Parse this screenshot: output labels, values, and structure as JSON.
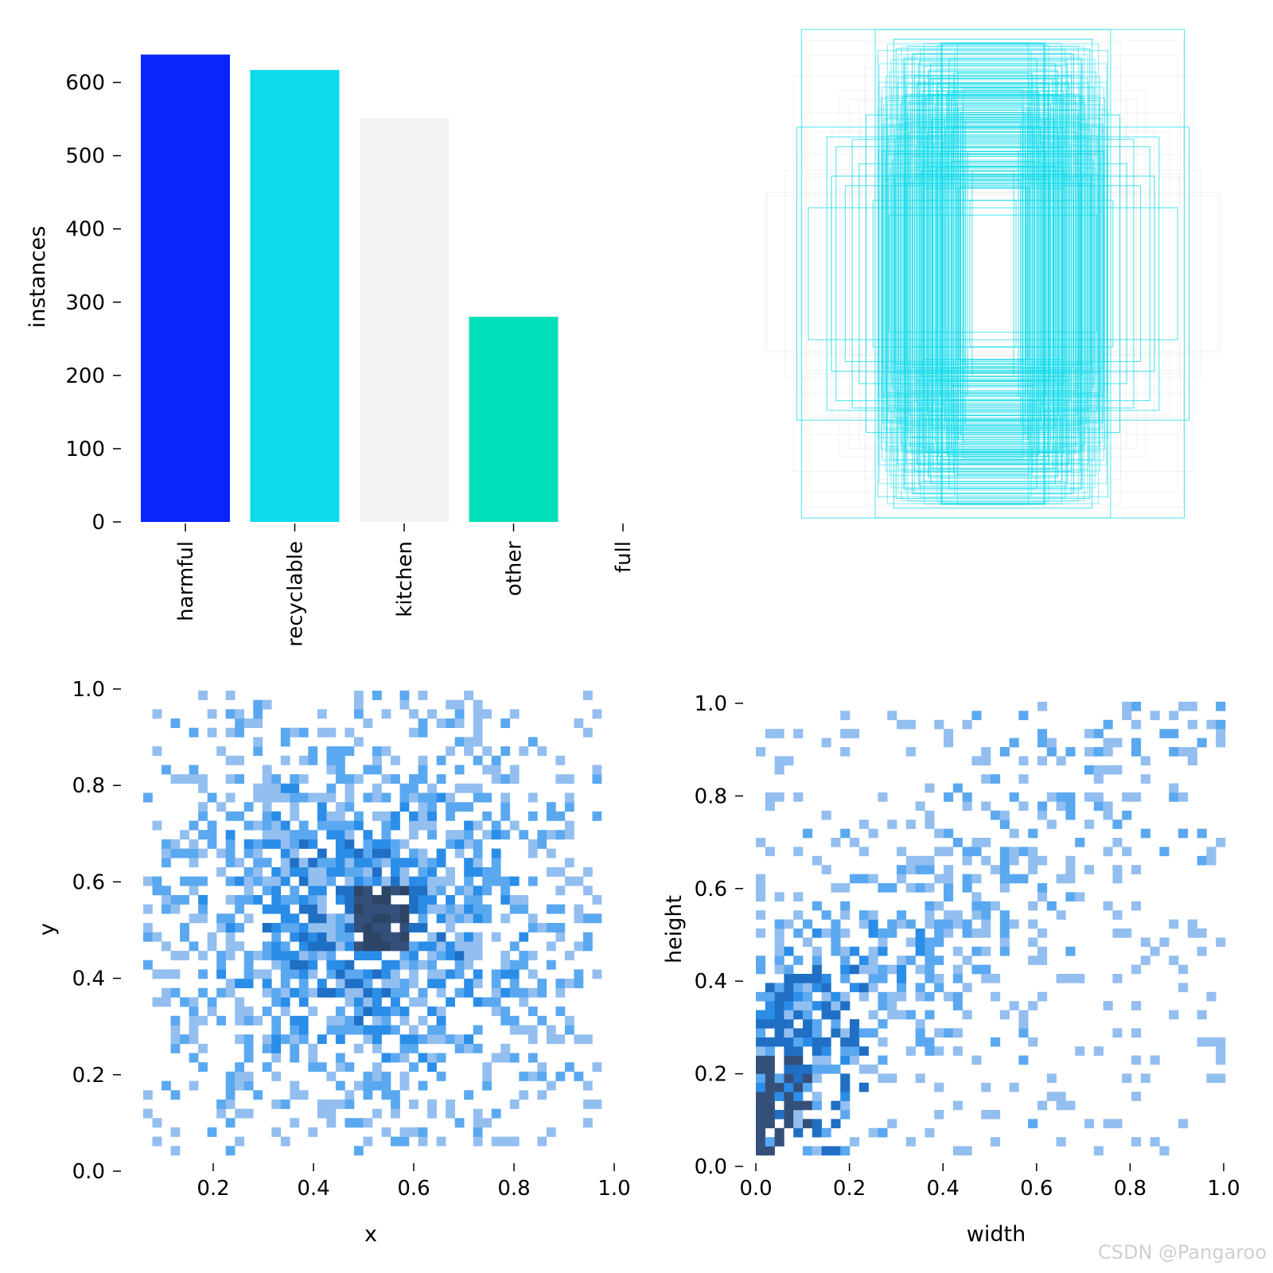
{
  "chart_data": [
    {
      "type": "bar",
      "categories": [
        "harmful",
        "recyclable",
        "kitchen",
        "other",
        "full"
      ],
      "values": [
        638,
        617,
        551,
        280,
        0
      ],
      "colors": [
        "#0b24fb",
        "#0bdbeb",
        "#f3f3f3",
        "#00dfb7",
        "#ffffff"
      ],
      "ylabel": "instances",
      "xlabel": "",
      "ylim": [
        0,
        640
      ],
      "yticks": [
        "0",
        "100",
        "200",
        "300",
        "400",
        "500",
        "600"
      ],
      "grid": false
    },
    {
      "type": "boxes",
      "description_free": true,
      "color": "#0bdbeb",
      "boxes": [
        {
          "w": 0.83,
          "h": 1.0
        },
        {
          "w": 0.51,
          "h": 1.0
        },
        {
          "w": 0.43,
          "h": 0.96
        },
        {
          "w": 0.42,
          "h": 0.92
        },
        {
          "w": 0.35,
          "h": 0.9
        },
        {
          "w": 0.32,
          "h": 0.87
        },
        {
          "w": 0.3,
          "h": 0.85
        },
        {
          "w": 0.28,
          "h": 0.83
        },
        {
          "w": 0.26,
          "h": 0.8
        },
        {
          "w": 0.24,
          "h": 0.78
        },
        {
          "w": 0.22,
          "h": 0.76
        },
        {
          "w": 0.2,
          "h": 0.74
        },
        {
          "w": 0.18,
          "h": 0.72
        },
        {
          "w": 0.16,
          "h": 0.7
        },
        {
          "w": 0.15,
          "h": 0.68
        },
        {
          "w": 0.14,
          "h": 0.66
        },
        {
          "w": 0.13,
          "h": 0.64
        },
        {
          "w": 0.12,
          "h": 0.62
        },
        {
          "w": 0.85,
          "h": 0.6
        },
        {
          "w": 0.72,
          "h": 0.56
        },
        {
          "w": 0.61,
          "h": 0.55
        },
        {
          "w": 0.48,
          "h": 0.5
        },
        {
          "w": 0.58,
          "h": 0.45
        },
        {
          "w": 0.7,
          "h": 0.4
        },
        {
          "w": 0.8,
          "h": 0.27
        },
        {
          "w": 0.45,
          "h": 0.24
        },
        {
          "w": 0.26,
          "h": 0.58
        },
        {
          "w": 0.2,
          "h": 0.52
        },
        {
          "w": 0.18,
          "h": 0.46
        },
        {
          "w": 0.24,
          "h": 0.4
        },
        {
          "w": 0.3,
          "h": 0.35
        },
        {
          "w": 0.35,
          "h": 0.3
        },
        {
          "w": 0.38,
          "h": 0.62
        },
        {
          "w": 0.4,
          "h": 0.7
        },
        {
          "w": 0.33,
          "h": 0.78
        },
        {
          "w": 0.27,
          "h": 0.86
        },
        {
          "w": 0.22,
          "h": 0.94
        },
        {
          "w": 0.19,
          "h": 0.88
        },
        {
          "w": 0.17,
          "h": 0.82
        },
        {
          "w": 0.21,
          "h": 0.64
        },
        {
          "w": 0.25,
          "h": 0.69
        },
        {
          "w": 0.29,
          "h": 0.73
        },
        {
          "w": 0.34,
          "h": 0.81
        },
        {
          "w": 0.37,
          "h": 0.67
        },
        {
          "w": 0.23,
          "h": 0.5
        },
        {
          "w": 0.16,
          "h": 0.44
        },
        {
          "w": 0.12,
          "h": 0.38
        },
        {
          "w": 0.1,
          "h": 0.3
        },
        {
          "w": 0.68,
          "h": 0.52
        },
        {
          "w": 0.55,
          "h": 0.65
        },
        {
          "w": 0.64,
          "h": 0.36
        },
        {
          "w": 0.52,
          "h": 0.3
        },
        {
          "w": 0.41,
          "h": 0.56
        },
        {
          "w": 0.36,
          "h": 0.48
        },
        {
          "w": 0.31,
          "h": 0.42
        },
        {
          "w": 0.28,
          "h": 0.6
        },
        {
          "w": 0.19,
          "h": 0.75
        },
        {
          "w": 0.14,
          "h": 0.58
        },
        {
          "w": 0.11,
          "h": 0.5
        },
        {
          "w": 0.09,
          "h": 0.42
        }
      ]
    },
    {
      "type": "heatmap",
      "xlabel": "x",
      "ylabel": "y",
      "xlim": [
        0.05,
        1.0
      ],
      "ylim": [
        0.0,
        1.0
      ],
      "xticks": [
        "0.2",
        "0.4",
        "0.6",
        "0.8",
        "1.0"
      ],
      "yticks": [
        "0.0",
        "0.2",
        "0.4",
        "0.6",
        "0.8",
        "1.0"
      ],
      "x_mean": 0.5,
      "y_mean": 0.5,
      "x_sd": 0.2,
      "y_sd": 0.17,
      "bins": 50,
      "colors": [
        "#93bef0",
        "#5aa8f0",
        "#2a8de8",
        "#1f6fc4",
        "#34507a",
        "#2d4466"
      ]
    },
    {
      "type": "heatmap",
      "xlabel": "width",
      "ylabel": "height",
      "xlim": [
        0.0,
        1.0
      ],
      "ylim": [
        0.0,
        1.0
      ],
      "xticks": [
        "0.0",
        "0.2",
        "0.4",
        "0.6",
        "0.8",
        "1.0"
      ],
      "yticks": [
        "0.0",
        "0.2",
        "0.4",
        "0.6",
        "0.8",
        "1.0"
      ],
      "bins": 50,
      "colors": [
        "#93bef0",
        "#5aa8f0",
        "#2a8de8",
        "#1f6fc4",
        "#34507a",
        "#2d4466"
      ]
    }
  ],
  "watermark": "CSDN @Pangaroo"
}
